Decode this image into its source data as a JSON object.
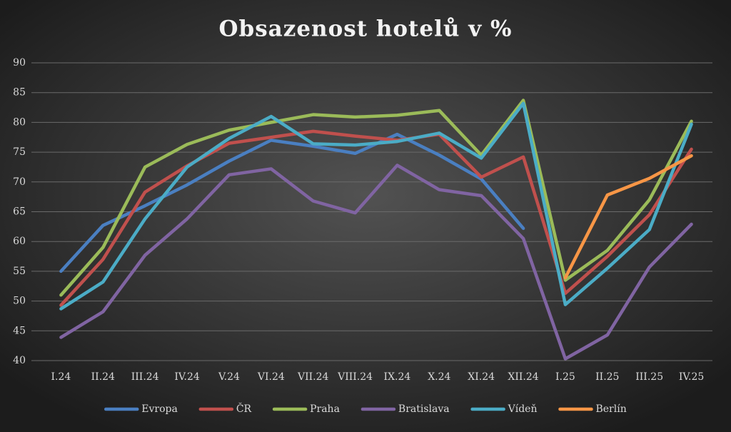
{
  "chart_data": {
    "type": "line",
    "title": "Obsazenost hotelů v %",
    "categories": [
      "I.24",
      "II.24",
      "III.24",
      "IV.24",
      "V.24",
      "VI.24",
      "VII.24",
      "VIII.24",
      "IX.24",
      "X.24",
      "XI.24",
      "XII.24",
      "I.25",
      "II.25",
      "III.25",
      "IV.25"
    ],
    "ylim": [
      40,
      90
    ],
    "yticks": [
      40,
      45,
      50,
      55,
      60,
      65,
      70,
      75,
      80,
      85,
      90
    ],
    "grid": true,
    "legend": "bottom",
    "series": [
      {
        "name": "Evropa",
        "color": "#4a7fc1",
        "values": [
          55,
          62.7,
          66,
          69.5,
          73.5,
          77,
          76,
          74.8,
          78,
          74.5,
          70.5,
          62.2,
          null,
          null,
          null,
          null
        ]
      },
      {
        "name": "ČR",
        "color": "#c0504d",
        "values": [
          49.3,
          57,
          68.3,
          72.7,
          76.5,
          77.5,
          78.5,
          77.7,
          77,
          78,
          70.8,
          74.2,
          51.3,
          57.5,
          64.5,
          75.5
        ]
      },
      {
        "name": "Praha",
        "color": "#9bbb59",
        "values": [
          51,
          59,
          72.5,
          76.3,
          78.7,
          80,
          81.3,
          80.9,
          81.2,
          82,
          74.5,
          83.7,
          53.5,
          58.5,
          67,
          80.2
        ]
      },
      {
        "name": "Bratislava",
        "color": "#8064a2",
        "values": [
          43.9,
          48.2,
          57.7,
          63.8,
          71.2,
          72.2,
          66.8,
          64.8,
          72.8,
          68.7,
          67.7,
          60.5,
          40.3,
          44.3,
          55.7,
          62.9
        ]
      },
      {
        "name": "Vídeň",
        "color": "#4bacc6",
        "values": [
          48.7,
          53.2,
          63.8,
          72.5,
          77.3,
          81,
          76.4,
          76.2,
          76.8,
          78.2,
          74,
          83.2,
          49.4,
          55.5,
          62,
          79.7
        ]
      },
      {
        "name": "Berlín",
        "color": "#f79646",
        "values": [
          null,
          null,
          null,
          null,
          null,
          null,
          null,
          null,
          null,
          null,
          null,
          null,
          53.9,
          67.8,
          70.6,
          74.4
        ]
      }
    ]
  }
}
